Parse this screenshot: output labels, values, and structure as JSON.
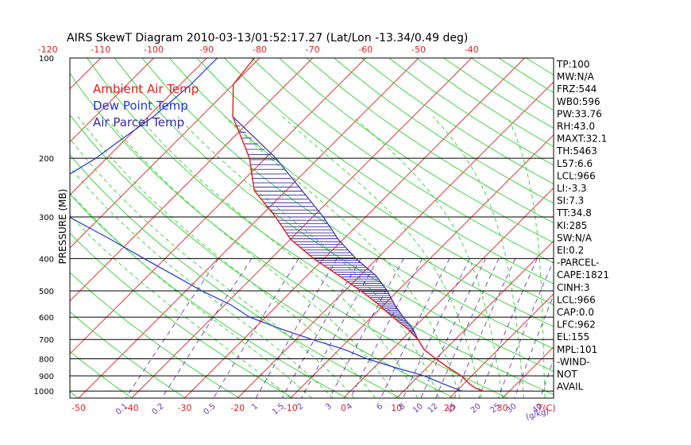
{
  "chart_data": {
    "type": "skew-t",
    "title": "AIRS SkewT Diagram 2010-03-13/01:52:17.27 (Lat/Lon -13.34/0.49 deg)",
    "ylabel": "PRESSURE (MB)",
    "xlabel": "T(C)",
    "mixing_ratio_unit": "(g/kg)",
    "pressure_ticks": [
      "100",
      "200",
      "300",
      "400",
      "500",
      "600",
      "700",
      "800",
      "900",
      "1000"
    ],
    "top_temp_ticks": [
      "-120",
      "-110",
      "-100",
      "-90",
      "-80",
      "-70",
      "-60",
      "-50",
      "-40"
    ],
    "bottom_temp_ticks": [
      "-50",
      "-40",
      "-30",
      "-20",
      "-10",
      "0",
      "10",
      "20",
      "30"
    ],
    "mixing_ratio_labels": [
      "0.1",
      "0.2",
      "0.5",
      "1",
      "1.5",
      "2",
      "3",
      "4",
      "6",
      "8",
      "10",
      "12",
      "15",
      "20",
      "25",
      "30",
      "40"
    ],
    "legend": [
      {
        "label": "Ambient Air Temp",
        "color": "#e41c1c"
      },
      {
        "label": "Dew Point Temp",
        "color": "#1f35d6"
      },
      {
        "label": "Air Parcel Temp",
        "color": "#3a2aa8"
      }
    ],
    "colors": {
      "isotherm": "#e41c1c",
      "dry_adiabat": "#2fd02f",
      "moist_adiabat": "#2fd02f",
      "mixing_ratio": "#6a3ab0",
      "isobar": "#000000",
      "cape_hatch": "#3a2aa8"
    },
    "series": [
      {
        "name": "Ambient Air Temp",
        "points": [
          [
            100,
            -81
          ],
          [
            120,
            -80
          ],
          [
            150,
            -74
          ],
          [
            180,
            -67
          ],
          [
            200,
            -63
          ],
          [
            250,
            -56
          ],
          [
            300,
            -47
          ],
          [
            350,
            -40
          ],
          [
            400,
            -32
          ],
          [
            450,
            -24
          ],
          [
            500,
            -17
          ],
          [
            550,
            -11
          ],
          [
            600,
            -6
          ],
          [
            650,
            -1
          ],
          [
            700,
            3
          ],
          [
            750,
            6
          ],
          [
            800,
            10
          ],
          [
            850,
            14
          ],
          [
            900,
            18
          ],
          [
            950,
            21
          ],
          [
            980,
            23
          ],
          [
            1000,
            25
          ]
        ]
      },
      {
        "name": "Dew Point Temp",
        "points": [
          [
            100,
            -88
          ],
          [
            120,
            -88
          ],
          [
            150,
            -89
          ],
          [
            180,
            -91
          ],
          [
            200,
            -92
          ],
          [
            250,
            -96
          ],
          [
            300,
            -86
          ],
          [
            350,
            -74
          ],
          [
            400,
            -64
          ],
          [
            450,
            -55
          ],
          [
            500,
            -47
          ],
          [
            550,
            -39
          ],
          [
            600,
            -33
          ],
          [
            650,
            -25
          ],
          [
            700,
            -17
          ],
          [
            750,
            -9
          ],
          [
            800,
            -3
          ],
          [
            850,
            4
          ],
          [
            900,
            11
          ],
          [
            950,
            16
          ],
          [
            1000,
            21
          ]
        ]
      },
      {
        "name": "Air Parcel Temp",
        "points": [
          [
            150,
            -74
          ],
          [
            200,
            -58
          ],
          [
            250,
            -47
          ],
          [
            300,
            -38
          ],
          [
            350,
            -31
          ],
          [
            400,
            -24
          ],
          [
            450,
            -17
          ],
          [
            500,
            -12
          ],
          [
            550,
            -8
          ],
          [
            600,
            -4
          ],
          [
            650,
            0
          ],
          [
            700,
            3
          ],
          [
            750,
            6
          ],
          [
            800,
            10
          ],
          [
            850,
            14
          ],
          [
            900,
            18
          ],
          [
            950,
            21
          ],
          [
            980,
            23
          ],
          [
            1000,
            25
          ]
        ]
      }
    ],
    "indices": [
      "TP:100",
      "MW:N/A",
      "FRZ:544",
      "WB0:596",
      "PW:33.76",
      "RH:43.0",
      "MAXT:32.1",
      "TH:5463",
      "L57:6.6",
      "LCL:966",
      "LI:-3.3",
      "SI:7.3",
      "TT:34.8",
      "KI:285",
      "SW:N/A",
      "EI:0.2",
      "-PARCEL-",
      "CAPE:1821",
      "CINH:3",
      "LCL:966",
      "CAP:0.0",
      "LFC:962",
      "EL:155",
      "MPL:101",
      "-WIND-",
      "NOT",
      "AVAIL"
    ]
  }
}
